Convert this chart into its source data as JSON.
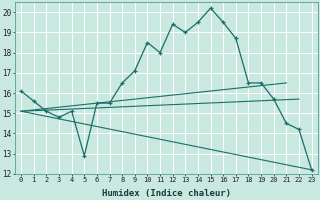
{
  "xlabel": "Humidex (Indice chaleur)",
  "bg_color": "#c8e8e0",
  "grid_color": "#ffffff",
  "line_color": "#1a6e6a",
  "xlim": [
    -0.5,
    23.5
  ],
  "ylim": [
    12,
    20.5
  ],
  "xticks": [
    0,
    1,
    2,
    3,
    4,
    5,
    6,
    7,
    8,
    9,
    10,
    11,
    12,
    13,
    14,
    15,
    16,
    17,
    18,
    19,
    20,
    21,
    22,
    23
  ],
  "yticks": [
    12,
    13,
    14,
    15,
    16,
    17,
    18,
    19,
    20
  ],
  "main_series": {
    "x": [
      0,
      1,
      2,
      3,
      4,
      5,
      6,
      7,
      8,
      9,
      10,
      11,
      12,
      13,
      14,
      15,
      16,
      17,
      18,
      19,
      20,
      21,
      22,
      23
    ],
    "y": [
      16.1,
      15.6,
      15.1,
      14.8,
      15.1,
      12.9,
      15.5,
      15.5,
      16.5,
      17.1,
      18.5,
      18.0,
      19.4,
      19.0,
      19.5,
      20.2,
      19.5,
      18.7,
      16.5,
      16.5,
      15.7,
      14.5,
      14.2,
      12.2
    ]
  },
  "straight_lines": [
    {
      "x": [
        0,
        21
      ],
      "y": [
        15.1,
        16.5
      ]
    },
    {
      "x": [
        0,
        22
      ],
      "y": [
        15.1,
        15.7
      ]
    },
    {
      "x": [
        0,
        23
      ],
      "y": [
        15.1,
        12.2
      ]
    }
  ]
}
